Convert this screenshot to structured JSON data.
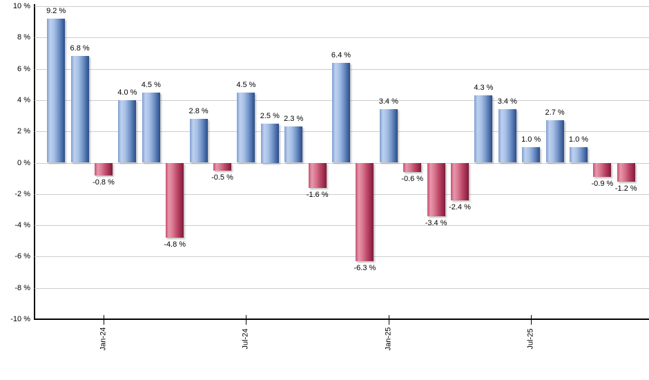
{
  "chart_data": {
    "type": "bar",
    "title": "",
    "unit": "%",
    "values": [
      9.2,
      6.8,
      -0.8,
      4.0,
      4.5,
      -4.8,
      2.8,
      -0.5,
      4.5,
      2.5,
      2.3,
      -1.6,
      6.4,
      -6.3,
      3.4,
      -0.6,
      -3.4,
      -2.4,
      4.3,
      3.4,
      1.0,
      2.7,
      1.0,
      -0.9,
      -1.2
    ],
    "bar_labels": [
      "9.2 %",
      "6.8 %",
      "-0.8 %",
      "4.0 %",
      "4.5 %",
      "-4.8 %",
      "2.8 %",
      "-0.5 %",
      "4.5 %",
      "2.5 %",
      "2.3 %",
      "-1.6 %",
      "6.4 %",
      "-6.3 %",
      "3.4 %",
      "-0.6 %",
      "-3.4 %",
      "-2.4 %",
      "4.3 %",
      "3.4 %",
      "1.0 %",
      "2.7 %",
      "1.0 %",
      "-0.9 %",
      "-1.2 %"
    ],
    "x_ticks": [
      {
        "label": "Jan-24",
        "index": 2
      },
      {
        "label": "Jul-24",
        "index": 8
      },
      {
        "label": "Jan-25",
        "index": 14
      },
      {
        "label": "Jul-25",
        "index": 20
      }
    ],
    "y_tick_labels": [
      "10 %",
      "8 %",
      "6 %",
      "4 %",
      "2 %",
      "0 %",
      "-2 %",
      "-4 %",
      "-6 %",
      "-8 %",
      "-10 %"
    ],
    "ylim": [
      -10,
      10
    ],
    "y_step": 2,
    "grid": true,
    "legend": "none",
    "colors": {
      "positive_base": "#6d92c9",
      "positive_highlight": "#bdd1ef",
      "positive_dark": "#2b4d89",
      "negative_base": "#c04a6b",
      "negative_highlight": "#e598ac",
      "negative_dark": "#7d1c3c",
      "gridline": "#cccccc",
      "axis": "#000000",
      "label_text": "#000000"
    }
  }
}
